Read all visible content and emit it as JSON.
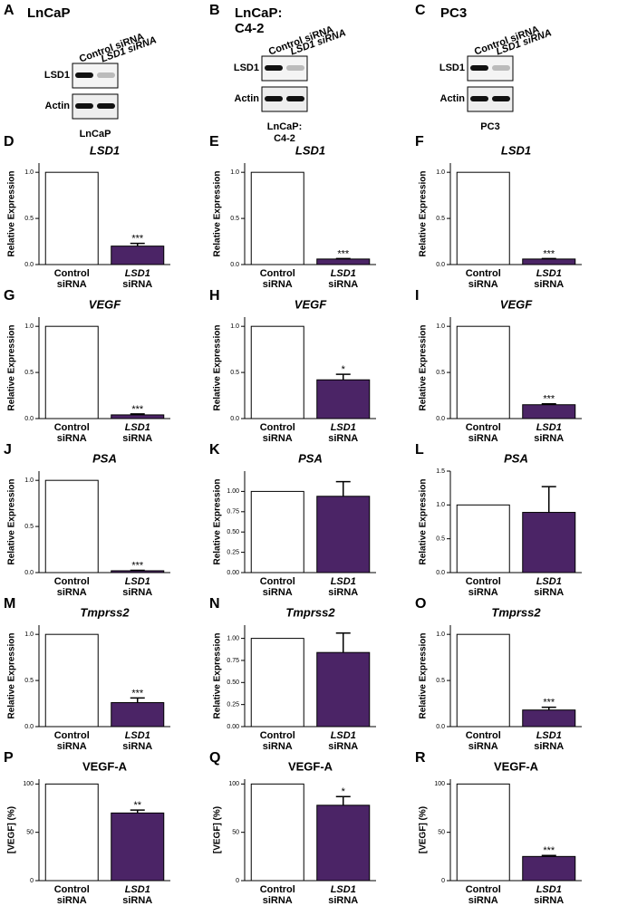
{
  "blots": [
    {
      "letter": "A",
      "title": [
        "LnCaP"
      ],
      "lanes": [
        "Control siRNA",
        "LSD1 siRNA"
      ],
      "rows": [
        "LSD1",
        "Actin"
      ],
      "caption": [
        "LnCaP"
      ]
    },
    {
      "letter": "B",
      "title": [
        "LnCaP:",
        "C4-2"
      ],
      "lanes": [
        "Control siRNA",
        "LSD1 siRNA"
      ],
      "rows": [
        "LSD1",
        "Actin"
      ],
      "caption": [
        "LnCaP:",
        "C4-2"
      ]
    },
    {
      "letter": "C",
      "title": [
        "PC3"
      ],
      "lanes": [
        "Control siRNA",
        "LSD1 siRNA"
      ],
      "rows": [
        "LSD1",
        "Actin"
      ],
      "caption": [
        "PC3"
      ]
    }
  ],
  "chart_data": [
    {
      "type": "bar",
      "letter": "D",
      "title": "LSD1",
      "title_italic": true,
      "ylabel": "Relative Expression",
      "categories": [
        [
          "Control",
          "siRNA"
        ],
        [
          "LSD1",
          "siRNA"
        ]
      ],
      "values": [
        1.0,
        0.2
      ],
      "errors": [
        null,
        0.03
      ],
      "sig_labels": [
        null,
        "***"
      ],
      "colors": [
        "#ffffff",
        "#4b2466"
      ],
      "ylim": [
        0,
        1.1
      ],
      "yticks": [
        {
          "value": 0,
          "label": "0.0"
        },
        {
          "value": 0.5,
          "label": "0.5"
        },
        {
          "value": 1,
          "label": "1.0"
        }
      ]
    },
    {
      "type": "bar",
      "letter": "E",
      "title": "LSD1",
      "title_italic": true,
      "ylabel": "Relative Expression",
      "categories": [
        [
          "Control",
          "siRNA"
        ],
        [
          "LSD1",
          "siRNA"
        ]
      ],
      "values": [
        1.0,
        0.06
      ],
      "errors": [
        null,
        0.005
      ],
      "sig_labels": [
        null,
        "***"
      ],
      "colors": [
        "#ffffff",
        "#4b2466"
      ],
      "ylim": [
        0,
        1.1
      ],
      "yticks": [
        {
          "value": 0,
          "label": "0.0"
        },
        {
          "value": 0.5,
          "label": "0.5"
        },
        {
          "value": 1,
          "label": "1.0"
        }
      ]
    },
    {
      "type": "bar",
      "letter": "F",
      "title": "LSD1",
      "title_italic": true,
      "ylabel": "Relative Expression",
      "categories": [
        [
          "Control",
          "siRNA"
        ],
        [
          "LSD1",
          "siRNA"
        ]
      ],
      "values": [
        1.0,
        0.06
      ],
      "errors": [
        null,
        0.005
      ],
      "sig_labels": [
        null,
        "***"
      ],
      "colors": [
        "#ffffff",
        "#4b2466"
      ],
      "ylim": [
        0,
        1.1
      ],
      "yticks": [
        {
          "value": 0,
          "label": "0.0"
        },
        {
          "value": 0.5,
          "label": "0.5"
        },
        {
          "value": 1,
          "label": "1.0"
        }
      ]
    },
    {
      "type": "bar",
      "letter": "G",
      "title": "VEGF",
      "title_italic": true,
      "ylabel": "Relative Expression",
      "categories": [
        [
          "Control",
          "siRNA"
        ],
        [
          "LSD1",
          "siRNA"
        ]
      ],
      "values": [
        1.0,
        0.04
      ],
      "errors": [
        null,
        0.01
      ],
      "sig_labels": [
        null,
        "***"
      ],
      "colors": [
        "#ffffff",
        "#4b2466"
      ],
      "ylim": [
        0,
        1.1
      ],
      "yticks": [
        {
          "value": 0,
          "label": "0.0"
        },
        {
          "value": 0.5,
          "label": "0.5"
        },
        {
          "value": 1,
          "label": "1.0"
        }
      ]
    },
    {
      "type": "bar",
      "letter": "H",
      "title": "VEGF",
      "title_italic": true,
      "ylabel": "Relative Expression",
      "categories": [
        [
          "Control",
          "siRNA"
        ],
        [
          "LSD1",
          "siRNA"
        ]
      ],
      "values": [
        1.0,
        0.42
      ],
      "errors": [
        null,
        0.06
      ],
      "sig_labels": [
        null,
        "*"
      ],
      "colors": [
        "#ffffff",
        "#4b2466"
      ],
      "ylim": [
        0,
        1.1
      ],
      "yticks": [
        {
          "value": 0,
          "label": "0.0"
        },
        {
          "value": 0.5,
          "label": "0.5"
        },
        {
          "value": 1,
          "label": "1.0"
        }
      ]
    },
    {
      "type": "bar",
      "letter": "I",
      "title": "VEGF",
      "title_italic": true,
      "ylabel": "Relative Expression",
      "categories": [
        [
          "Control",
          "siRNA"
        ],
        [
          "LSD1",
          "siRNA"
        ]
      ],
      "values": [
        1.0,
        0.15
      ],
      "errors": [
        null,
        0.01
      ],
      "sig_labels": [
        null,
        "***"
      ],
      "colors": [
        "#ffffff",
        "#4b2466"
      ],
      "ylim": [
        0,
        1.1
      ],
      "yticks": [
        {
          "value": 0,
          "label": "0.0"
        },
        {
          "value": 0.5,
          "label": "0.5"
        },
        {
          "value": 1,
          "label": "1.0"
        }
      ]
    },
    {
      "type": "bar",
      "letter": "J",
      "title": "PSA",
      "title_italic": true,
      "ylabel": "Relative Expression",
      "categories": [
        [
          "Control",
          "siRNA"
        ],
        [
          "LSD1",
          "siRNA"
        ]
      ],
      "values": [
        1.0,
        0.02
      ],
      "errors": [
        null,
        0.005
      ],
      "sig_labels": [
        null,
        "***"
      ],
      "colors": [
        "#ffffff",
        "#4b2466"
      ],
      "ylim": [
        0,
        1.1
      ],
      "yticks": [
        {
          "value": 0,
          "label": "0.0"
        },
        {
          "value": 0.5,
          "label": "0.5"
        },
        {
          "value": 1,
          "label": "1.0"
        }
      ]
    },
    {
      "type": "bar",
      "letter": "K",
      "title": "PSA",
      "title_italic": true,
      "ylabel": "Relative Expression",
      "categories": [
        [
          "Control",
          "siRNA"
        ],
        [
          "LSD1",
          "siRNA"
        ]
      ],
      "values": [
        1.0,
        0.94
      ],
      "errors": [
        null,
        0.18
      ],
      "sig_labels": [
        null,
        null
      ],
      "colors": [
        "#ffffff",
        "#4b2466"
      ],
      "ylim": [
        0,
        1.25
      ],
      "yticks": [
        {
          "value": 0,
          "label": "0.00"
        },
        {
          "value": 0.25,
          "label": "0.25"
        },
        {
          "value": 0.5,
          "label": "0.50"
        },
        {
          "value": 0.75,
          "label": "0.75"
        },
        {
          "value": 1,
          "label": "1.00"
        }
      ]
    },
    {
      "type": "bar",
      "letter": "L",
      "title": "PSA",
      "title_italic": true,
      "ylabel": "Relative Expression",
      "categories": [
        [
          "Control",
          "siRNA"
        ],
        [
          "LSD1",
          "siRNA"
        ]
      ],
      "values": [
        1.0,
        0.89
      ],
      "errors": [
        null,
        0.38
      ],
      "sig_labels": [
        null,
        null
      ],
      "colors": [
        "#ffffff",
        "#4b2466"
      ],
      "ylim": [
        0,
        1.5
      ],
      "yticks": [
        {
          "value": 0,
          "label": "0.0"
        },
        {
          "value": 0.5,
          "label": "0.5"
        },
        {
          "value": 1,
          "label": "1.0"
        },
        1.5
      ]
    },
    {
      "type": "bar",
      "letter": "M",
      "title": "Tmprss2",
      "title_italic": true,
      "ylabel": "Relative Expression",
      "categories": [
        [
          "Control",
          "siRNA"
        ],
        [
          "LSD1",
          "siRNA"
        ]
      ],
      "values": [
        1.0,
        0.26
      ],
      "errors": [
        null,
        0.05
      ],
      "sig_labels": [
        null,
        "***"
      ],
      "colors": [
        "#ffffff",
        "#4b2466"
      ],
      "ylim": [
        0,
        1.1
      ],
      "yticks": [
        {
          "value": 0,
          "label": "0.0"
        },
        {
          "value": 0.5,
          "label": "0.5"
        },
        {
          "value": 1,
          "label": "1.0"
        }
      ]
    },
    {
      "type": "bar",
      "letter": "N",
      "title": "Tmprss2",
      "title_italic": true,
      "ylabel": "Relative Expression",
      "categories": [
        [
          "Control",
          "siRNA"
        ],
        [
          "LSD1",
          "siRNA"
        ]
      ],
      "values": [
        1.0,
        0.84
      ],
      "errors": [
        null,
        0.22
      ],
      "sig_labels": [
        null,
        null
      ],
      "colors": [
        "#ffffff",
        "#4b2466"
      ],
      "ylim": [
        0,
        1.15
      ],
      "yticks": [
        {
          "value": 0,
          "label": "0.00"
        },
        {
          "value": 0.25,
          "label": "0.25"
        },
        {
          "value": 0.5,
          "label": "0.50"
        },
        {
          "value": 0.75,
          "label": "0.75"
        },
        {
          "value": 1,
          "label": "1.00"
        }
      ]
    },
    {
      "type": "bar",
      "letter": "O",
      "title": "Tmprss2",
      "title_italic": true,
      "ylabel": "Relative Expression",
      "categories": [
        [
          "Control",
          "siRNA"
        ],
        [
          "LSD1",
          "siRNA"
        ]
      ],
      "values": [
        1.0,
        0.18
      ],
      "errors": [
        null,
        0.03
      ],
      "sig_labels": [
        null,
        "***"
      ],
      "colors": [
        "#ffffff",
        "#4b2466"
      ],
      "ylim": [
        0,
        1.1
      ],
      "yticks": [
        {
          "value": 0,
          "label": "0.0"
        },
        {
          "value": 0.5,
          "label": "0.5"
        },
        {
          "value": 1,
          "label": "1.0"
        }
      ]
    },
    {
      "type": "bar",
      "letter": "P",
      "title": "VEGF-A",
      "title_italic": false,
      "ylabel": "[VEGF]  (%)",
      "categories": [
        [
          "Control",
          "siRNA"
        ],
        [
          "LSD1",
          "siRNA"
        ]
      ],
      "values": [
        100,
        70
      ],
      "errors": [
        null,
        3
      ],
      "sig_labels": [
        null,
        "**"
      ],
      "colors": [
        "#ffffff",
        "#4b2466"
      ],
      "ylim": [
        0,
        105
      ],
      "yticks": [
        0,
        50,
        100
      ]
    },
    {
      "type": "bar",
      "letter": "Q",
      "title": "VEGF-A",
      "title_italic": false,
      "ylabel": "[VEGF]  (%)",
      "categories": [
        [
          "Control",
          "siRNA"
        ],
        [
          "LSD1",
          "siRNA"
        ]
      ],
      "values": [
        100,
        78
      ],
      "errors": [
        null,
        9
      ],
      "sig_labels": [
        null,
        "*"
      ],
      "colors": [
        "#ffffff",
        "#4b2466"
      ],
      "ylim": [
        0,
        105
      ],
      "yticks": [
        0,
        50,
        100
      ]
    },
    {
      "type": "bar",
      "letter": "R",
      "title": "VEGF-A",
      "title_italic": false,
      "ylabel": "[VEGF]  (%)",
      "categories": [
        [
          "Control",
          "siRNA"
        ],
        [
          "LSD1",
          "siRNA"
        ]
      ],
      "values": [
        100,
        25
      ],
      "errors": [
        null,
        1
      ],
      "sig_labels": [
        null,
        "***"
      ],
      "colors": [
        "#ffffff",
        "#4b2466"
      ],
      "ylim": [
        0,
        105
      ],
      "yticks": [
        0,
        50,
        100
      ]
    }
  ]
}
